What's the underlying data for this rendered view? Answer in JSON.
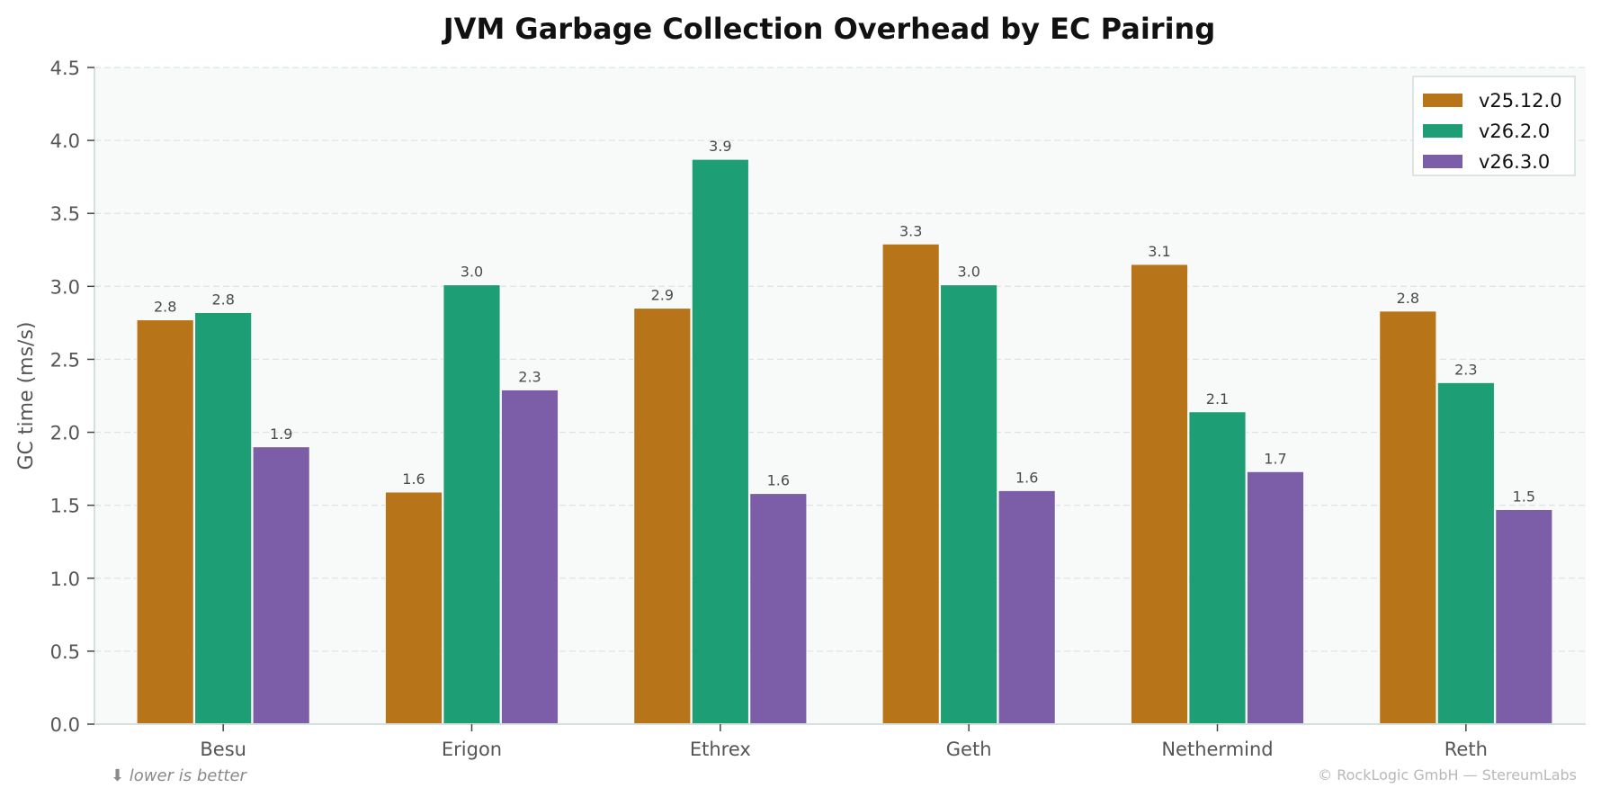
{
  "chart_data": {
    "type": "bar",
    "title": "JVM Garbage Collection Overhead by EC Pairing",
    "xlabel": "",
    "ylabel": "GC time (ms/s)",
    "ylim": [
      0,
      4.5
    ],
    "yticks": [
      "0.0",
      "0.5",
      "1.0",
      "1.5",
      "2.0",
      "2.5",
      "3.0",
      "3.5",
      "4.0",
      "4.5"
    ],
    "grid": true,
    "legend_position": "upper right",
    "categories": [
      "Besu",
      "Erigon",
      "Ethrex",
      "Geth",
      "Nethermind",
      "Reth"
    ],
    "series": [
      {
        "name": "v25.12.0",
        "color": "#b87418",
        "values": [
          2.77,
          1.59,
          2.85,
          3.29,
          3.15,
          2.83
        ],
        "labels": [
          "2.8",
          "1.6",
          "2.9",
          "3.3",
          "3.1",
          "2.8"
        ]
      },
      {
        "name": "v26.2.0",
        "color": "#1e9e74",
        "values": [
          2.82,
          3.01,
          3.87,
          3.01,
          2.14,
          2.34
        ],
        "labels": [
          "2.8",
          "3.0",
          "3.9",
          "3.0",
          "2.1",
          "2.3"
        ]
      },
      {
        "name": "v26.3.0",
        "color": "#7b5ea7",
        "values": [
          1.9,
          2.29,
          1.58,
          1.6,
          1.73,
          1.47
        ],
        "labels": [
          "1.9",
          "2.3",
          "1.6",
          "1.6",
          "1.7",
          "1.5"
        ]
      }
    ],
    "annotations": [
      "⬇ lower is better",
      "© RockLogic GmbH — StereumLabs"
    ]
  },
  "colors": {
    "plot_background": "#f8faf9",
    "grid": "#dde5e3",
    "axis": "#d5e0de"
  },
  "footer": {
    "note": "⬇ lower is better",
    "copyright": "© RockLogic GmbH — StereumLabs"
  }
}
